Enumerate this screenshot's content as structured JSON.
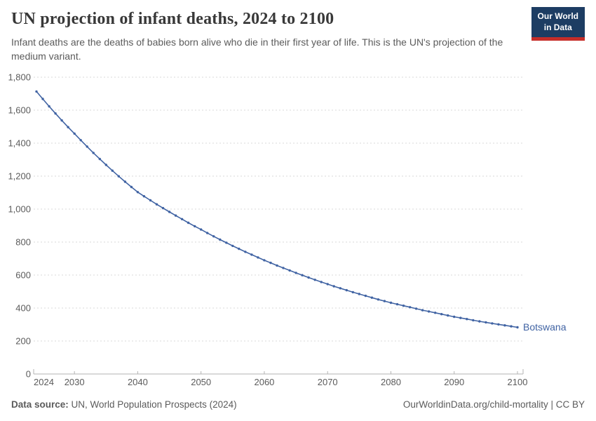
{
  "header": {
    "title": "UN projection of infant deaths, 2024 to 2100",
    "subtitle": "Infant deaths are the deaths of babies born alive who die in their first year of life. This is the UN's projection of the medium variant.",
    "logo": {
      "line1": "Our World",
      "line2": "in Data",
      "bg_color": "#1d3d63",
      "accent_color": "#c62d29"
    }
  },
  "chart_data": {
    "type": "line",
    "title": "UN projection of infant deaths, 2024 to 2100",
    "subtitle": "UN medium-variant projection of infant deaths for Botswana",
    "xlabel": "",
    "ylabel": "",
    "xlim": [
      2024,
      2100
    ],
    "ylim": [
      0,
      1800
    ],
    "grid": "horizontal-dashed",
    "legend_position": "end-of-line-label",
    "xticks": [
      2024,
      2030,
      2040,
      2050,
      2060,
      2070,
      2080,
      2090,
      2100
    ],
    "yticks": [
      {
        "value": 0,
        "label": "0"
      },
      {
        "value": 200,
        "label": "200"
      },
      {
        "value": 400,
        "label": "400"
      },
      {
        "value": 600,
        "label": "600"
      },
      {
        "value": 800,
        "label": "800"
      },
      {
        "value": 1000,
        "label": "1,000"
      },
      {
        "value": 1200,
        "label": "1,200"
      },
      {
        "value": 1400,
        "label": "1,400"
      },
      {
        "value": 1600,
        "label": "1,600"
      },
      {
        "value": 1800,
        "label": "1,800"
      }
    ],
    "series": [
      {
        "name": "Botswana",
        "color": "#4063a3",
        "x": [
          2024,
          2025,
          2026,
          2027,
          2028,
          2029,
          2030,
          2031,
          2032,
          2033,
          2034,
          2035,
          2036,
          2037,
          2038,
          2039,
          2040,
          2041,
          2042,
          2043,
          2044,
          2045,
          2046,
          2047,
          2048,
          2049,
          2050,
          2051,
          2052,
          2053,
          2054,
          2055,
          2056,
          2057,
          2058,
          2059,
          2060,
          2061,
          2062,
          2063,
          2064,
          2065,
          2066,
          2067,
          2068,
          2069,
          2070,
          2071,
          2072,
          2073,
          2074,
          2075,
          2076,
          2077,
          2078,
          2079,
          2080,
          2081,
          2082,
          2083,
          2084,
          2085,
          2086,
          2087,
          2088,
          2089,
          2090,
          2091,
          2092,
          2093,
          2094,
          2095,
          2096,
          2097,
          2098,
          2099,
          2100
        ],
        "values": [
          1713,
          1668,
          1623,
          1580,
          1538,
          1497,
          1458,
          1418,
          1379,
          1341,
          1304,
          1268,
          1233,
          1199,
          1166,
          1134,
          1103,
          1078,
          1053,
          1029,
          1006,
          983,
          961,
          939,
          917,
          896,
          876,
          855,
          835,
          815,
          796,
          777,
          759,
          741,
          724,
          707,
          690,
          674,
          658,
          643,
          628,
          613,
          599,
          585,
          571,
          558,
          545,
          532,
          520,
          508,
          496,
          485,
          474,
          463,
          452,
          442,
          432,
          423,
          414,
          405,
          396,
          387,
          379,
          371,
          363,
          355,
          347,
          340,
          333,
          326,
          319,
          313,
          307,
          301,
          295,
          289,
          283
        ]
      }
    ]
  },
  "footer": {
    "source_label": "Data source:",
    "source_text": " UN, World Population Prospects (2024)",
    "credit": "OurWorldinData.org/child-mortality | CC BY"
  }
}
